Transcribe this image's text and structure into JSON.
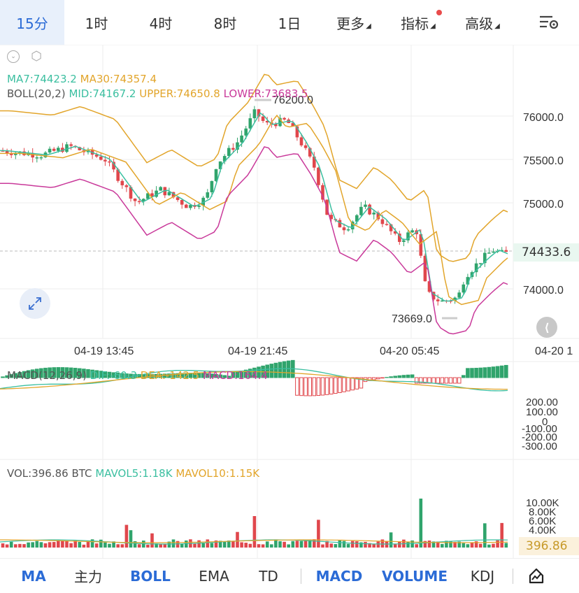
{
  "tabs": [
    {
      "label": "15分",
      "active": true
    },
    {
      "label": "1时"
    },
    {
      "label": "4时"
    },
    {
      "label": "8时"
    },
    {
      "label": "1日"
    },
    {
      "label": "更多",
      "dropdown": true
    },
    {
      "label": "指标",
      "dropdown": true,
      "badge": true
    },
    {
      "label": "高级",
      "dropdown": true
    }
  ],
  "main": {
    "ma_label": "MA7:74423.2",
    "ma30_label": "MA30:74357.4",
    "boll_label": "BOLL(20,2)",
    "mid_label": "MID:74167.2",
    "upper_label": "UPPER:74650.8",
    "lower_label": "LOWER:73683.5",
    "high_marker": "76200.0",
    "low_marker": "73669.0",
    "current_price": "74433.6",
    "price_axis": [
      "76000.0",
      "75500.0",
      "75000.0",
      "74000.0"
    ],
    "time_axis": [
      "04-19 13:45",
      "04-19 21:45",
      "04-20 05:45",
      "04-20 1"
    ]
  },
  "macd": {
    "title": "MACD(12,26,9)",
    "dif": "DIF:-60.3",
    "dea": "DEA:-142.5",
    "macd": "MACD:164.4",
    "axis": [
      "200.00",
      "100.00",
      "0",
      "-100.00",
      "-200.00",
      "-300.00"
    ]
  },
  "vol": {
    "title": "VOL:396.86 BTC",
    "mavol5": "MAVOL5:1.18K",
    "mavol10": "MAVOL10:1.15K",
    "axis": [
      "10.00K",
      "8.00K",
      "6.00K",
      "4.00K"
    ],
    "current": "396.86"
  },
  "bottom": [
    {
      "label": "MA",
      "on": true
    },
    {
      "label": "主力"
    },
    {
      "label": "BOLL",
      "on": true
    },
    {
      "label": "EMA"
    },
    {
      "label": "TD"
    },
    {
      "label": "MACD",
      "on": true
    },
    {
      "label": "VOLUME",
      "on": true
    },
    {
      "label": "KDJ"
    }
  ],
  "colors": {
    "up": "#30a46c",
    "down": "#e0474c",
    "accent": "#2b6bd6",
    "ma7": "#3bbfa0",
    "ma30": "#e2a52b",
    "lower": "#c9399a"
  }
}
